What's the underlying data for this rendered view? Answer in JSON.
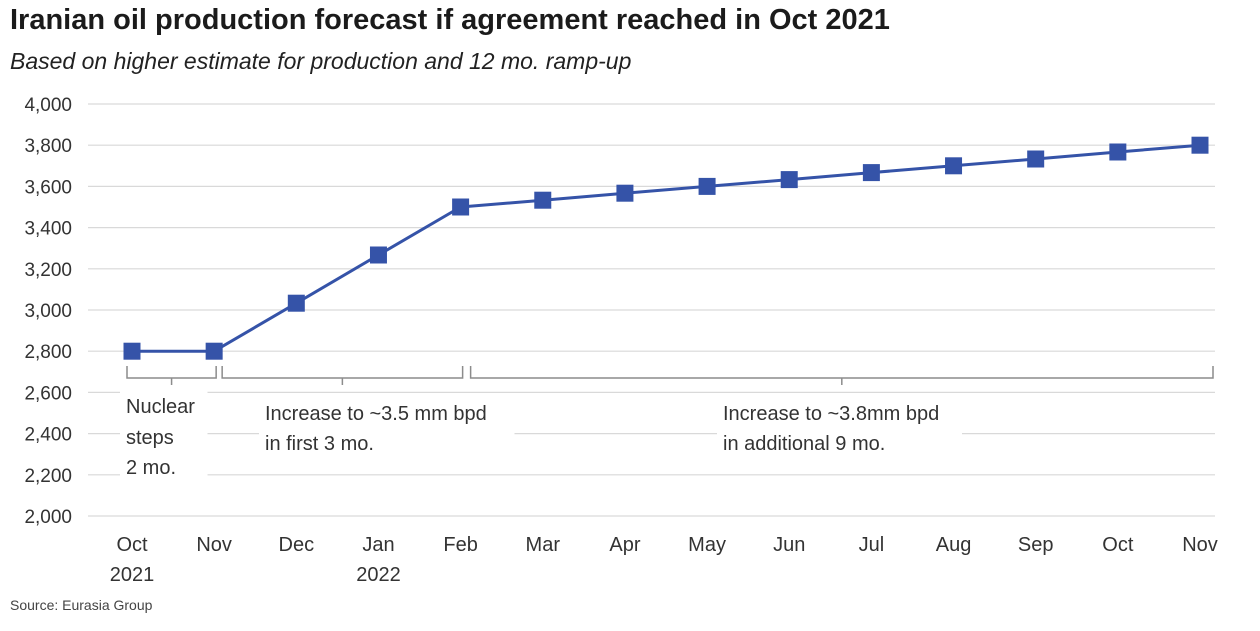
{
  "title": "Iranian oil production forecast if agreement reached in Oct 2021",
  "subtitle": "Based on higher estimate for production and 12 mo. ramp-up",
  "source": "Source: Eurasia Group",
  "colors": {
    "line": "#3553a8",
    "marker": "#3553a8",
    "grid": "#d9d9d9",
    "bracket": "#8c8c8c"
  },
  "chart_data": {
    "type": "line",
    "categories": [
      "Oct",
      "Nov",
      "Dec",
      "Jan",
      "Feb",
      "Mar",
      "Apr",
      "May",
      "Jun",
      "Jul",
      "Aug",
      "Sep",
      "Oct",
      "Nov"
    ],
    "year_labels": [
      {
        "index": 0,
        "label": "2021"
      },
      {
        "index": 3,
        "label": "2022"
      }
    ],
    "series": [
      {
        "values": [
          2800,
          2800,
          3033,
          3267,
          3500,
          3533,
          3567,
          3600,
          3633,
          3667,
          3700,
          3733,
          3767,
          3800
        ]
      }
    ],
    "ylim": [
      2000,
      4000
    ],
    "yticks": [
      2000,
      2200,
      2400,
      2600,
      2800,
      3000,
      3200,
      3400,
      3600,
      3800,
      4000
    ],
    "ytick_labels": [
      "2,000",
      "2,200",
      "2,400",
      "2,600",
      "2,800",
      "3,000",
      "3,200",
      "3,400",
      "3,600",
      "3,800",
      "4,000"
    ],
    "grid": true,
    "marker": "square",
    "annotations": [
      {
        "from": 0,
        "to": 1,
        "lines": [
          "Nuclear",
          "steps",
          "2 mo."
        ]
      },
      {
        "from": 1,
        "to": 4,
        "lines": [
          "Increase to ~3.5 mm bpd",
          "in first 3 mo."
        ]
      },
      {
        "from": 4,
        "to": 13,
        "lines": [
          "Increase to ~3.8mm bpd",
          "in additional 9 mo."
        ]
      }
    ]
  }
}
